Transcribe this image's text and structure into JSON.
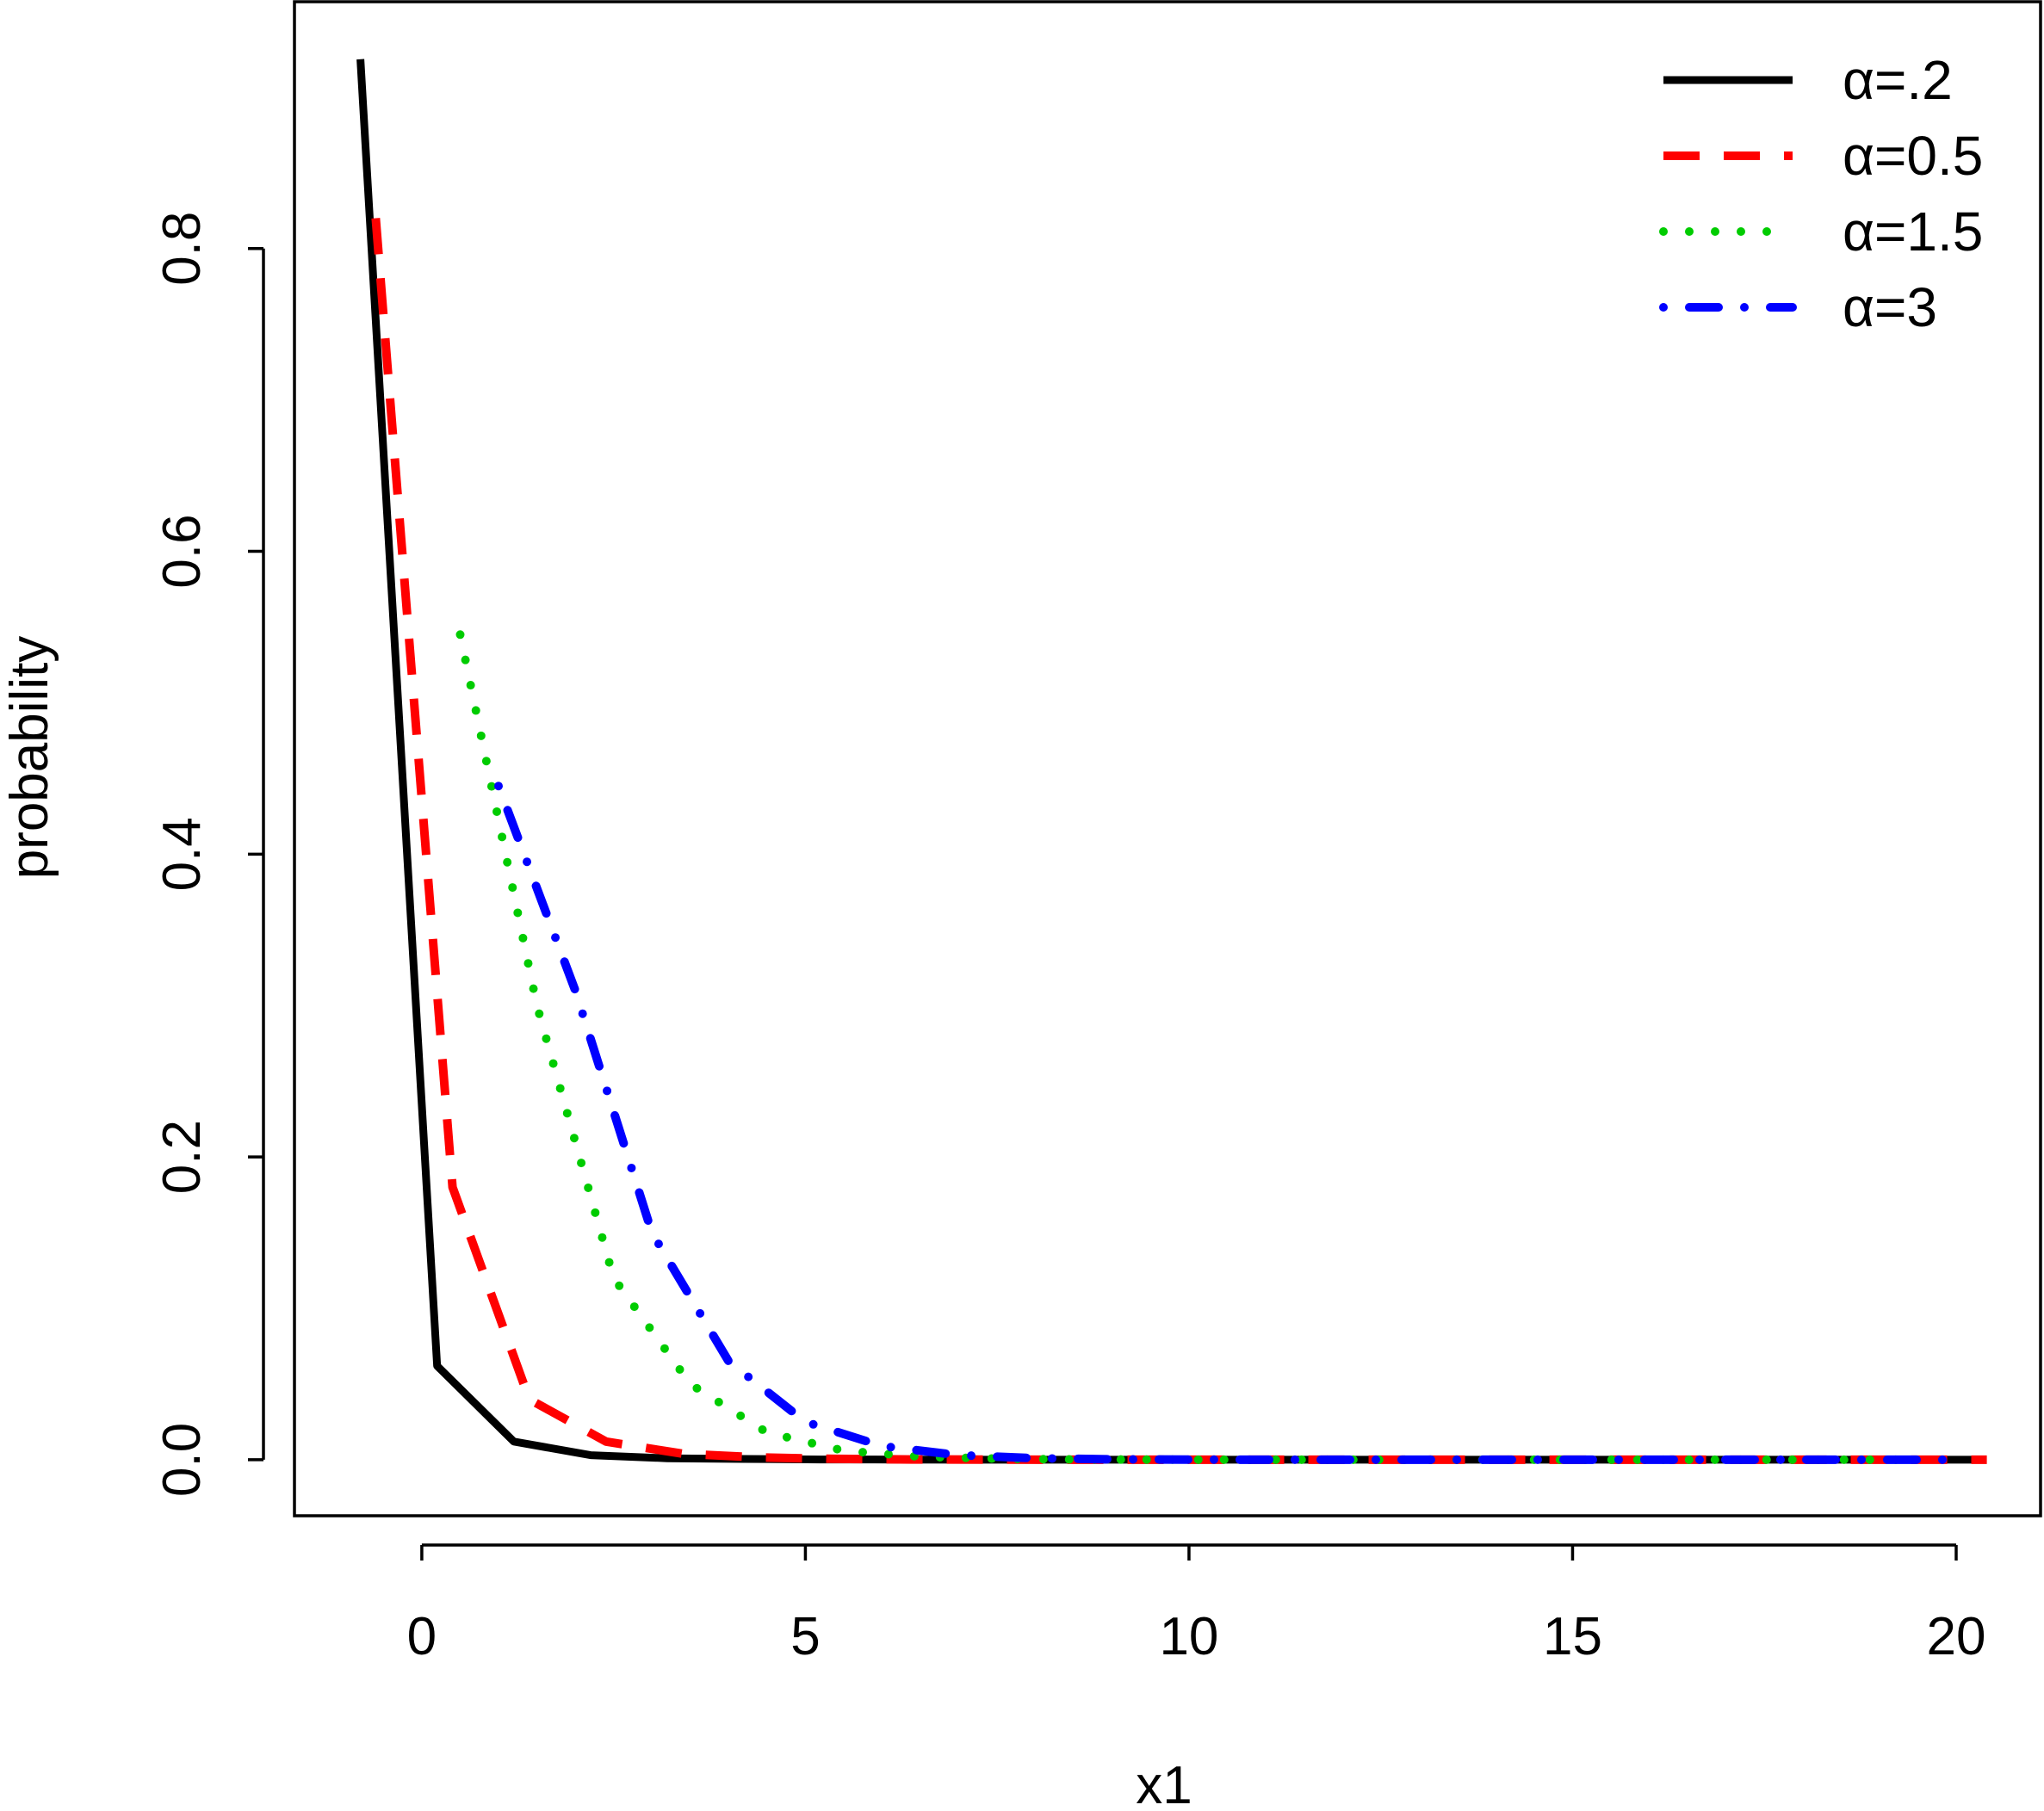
{
  "chart_data": {
    "type": "line",
    "title": "",
    "xlabel": "x1",
    "ylabel": "probability",
    "xlim": [
      -1.66,
      21.1
    ],
    "ylim": [
      -0.037,
      0.963
    ],
    "x_ticks": [
      {
        "value": 0,
        "label": "0"
      },
      {
        "value": 5,
        "label": "5"
      },
      {
        "value": 10,
        "label": "10"
      },
      {
        "value": 15,
        "label": "15"
      },
      {
        "value": 20,
        "label": "20"
      }
    ],
    "y_ticks": [
      {
        "value": 0.0,
        "label": "0.0"
      },
      {
        "value": 0.2,
        "label": "0.2"
      },
      {
        "value": 0.4,
        "label": "0.4"
      },
      {
        "value": 0.6,
        "label": "0.6"
      },
      {
        "value": 0.8,
        "label": "0.8"
      }
    ],
    "grid": false,
    "legend_position": "top-right",
    "series": [
      {
        "name": "α=.2",
        "color": "#000000",
        "line_style": "solid",
        "x": [
          -0.8,
          0.2,
          1.2,
          2.2,
          3.2,
          4.2,
          5.2,
          6.2,
          7.2,
          8.2,
          9.2,
          10.2,
          11.2,
          12.2,
          13.2,
          14.2,
          15.2,
          16.2,
          17.2,
          18.2,
          19.2,
          20.2
        ],
        "values": [
          0.925,
          0.062,
          0.012,
          0.003,
          0.001,
          0.0005,
          0.0002,
          0.0001,
          0,
          0,
          0,
          0,
          0,
          0,
          0,
          0,
          0,
          0,
          0,
          0,
          0,
          0
        ]
      },
      {
        "name": "α=0.5",
        "color": "#ff0000",
        "line_style": "dashed",
        "x": [
          -0.6,
          0.4,
          1.4,
          2.4,
          3.4,
          4.4,
          5.4,
          6.4,
          7.4,
          8.4,
          9.4,
          10.4,
          11.4,
          12.4,
          13.4,
          14.4,
          15.4,
          16.4,
          17.4,
          18.4,
          19.4,
          20.4
        ],
        "values": [
          0.82,
          0.18,
          0.04,
          0.012,
          0.004,
          0.0015,
          0.0006,
          0.0002,
          0.0001,
          0,
          0,
          0,
          0,
          0,
          0,
          0,
          0,
          0,
          0,
          0,
          0,
          0
        ]
      },
      {
        "name": "α=1.5",
        "color": "#00cc00",
        "line_style": "dotted",
        "x": [
          0.5,
          1.5,
          2.5,
          3.5,
          4.5,
          5.5,
          6.5,
          7.5,
          8.5,
          9.5,
          10.5,
          11.5,
          12.5,
          13.5,
          14.5,
          15.5,
          16.5,
          17.5,
          18.5,
          19.5
        ],
        "values": [
          0.545,
          0.3,
          0.12,
          0.05,
          0.018,
          0.006,
          0.002,
          0.0007,
          0.0002,
          0.0001,
          0,
          0,
          0,
          0,
          0,
          0,
          0,
          0,
          0,
          0
        ]
      },
      {
        "name": "α=3",
        "color": "#0000ff",
        "line_style": "dotdash",
        "x": [
          1.0,
          2.0,
          3.0,
          4.0,
          5.0,
          6.0,
          7.0,
          8.0,
          9.0,
          10.0,
          11.0,
          12.0,
          13.0,
          14.0,
          15.0,
          16.0,
          17.0,
          18.0,
          19.0,
          20.0
        ],
        "values": [
          0.445,
          0.31,
          0.15,
          0.065,
          0.025,
          0.009,
          0.003,
          0.001,
          0.0003,
          0.0001,
          0,
          0,
          0,
          0,
          0,
          0,
          0,
          0,
          0,
          0
        ]
      }
    ]
  }
}
